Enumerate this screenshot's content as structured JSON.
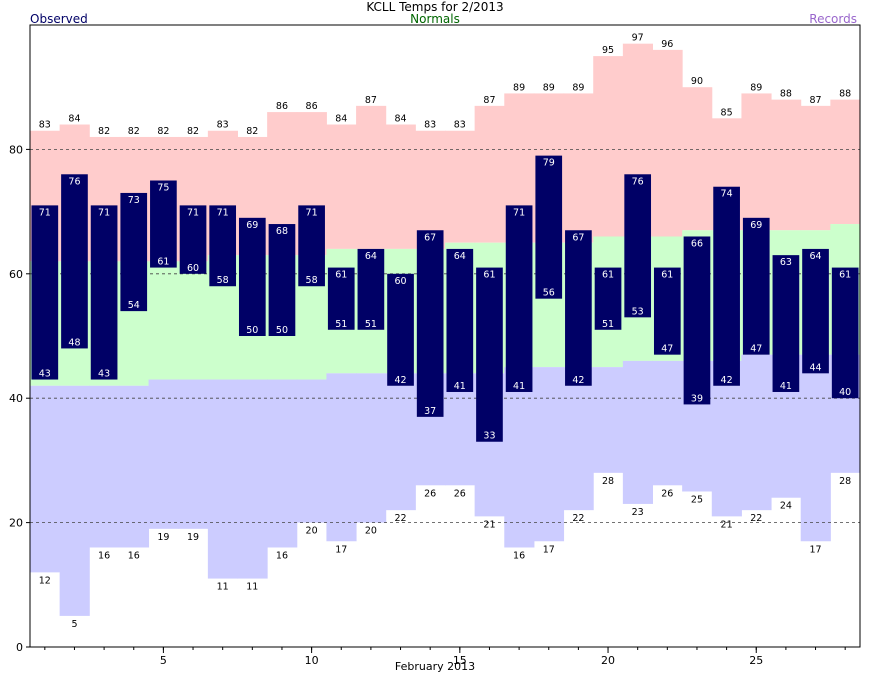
{
  "title": "KCLL Temps for 2/2013",
  "legend": {
    "observed_label": "Observed",
    "normals_label": "Normals",
    "records_label": "Records"
  },
  "colors": {
    "observed_bar": "#000066",
    "normal_band": "#ccffcc",
    "record_high_band": "#ffcccc",
    "record_low_band": "#ccccff",
    "observed_text": "#000066",
    "normals_text": "#006600",
    "records_text": "#9966cc"
  },
  "chart_data": {
    "type": "bar",
    "x_label": "February 2013",
    "x_ticks": [
      5,
      10,
      15,
      20,
      25
    ],
    "y_ticks": [
      0,
      20,
      40,
      60,
      80
    ],
    "ylim": [
      0,
      100
    ],
    "xlim": [
      0.5,
      28.5
    ],
    "grid": "dashed horizontal at 20, 40, 60, 80",
    "days": [
      1,
      2,
      3,
      4,
      5,
      6,
      7,
      8,
      9,
      10,
      11,
      12,
      13,
      14,
      15,
      16,
      17,
      18,
      19,
      20,
      21,
      22,
      23,
      24,
      25,
      26,
      27,
      28
    ],
    "observed_high": [
      71,
      76,
      71,
      73,
      75,
      71,
      71,
      69,
      68,
      71,
      61,
      64,
      60,
      67,
      64,
      61,
      71,
      79,
      67,
      61,
      76,
      61,
      66,
      74,
      69,
      63,
      64,
      61
    ],
    "observed_low": [
      43,
      48,
      43,
      54,
      61,
      60,
      58,
      50,
      50,
      58,
      51,
      51,
      42,
      37,
      41,
      33,
      41,
      56,
      42,
      51,
      53,
      47,
      39,
      42,
      47,
      41,
      44,
      40
    ],
    "normal_high": [
      62,
      62,
      62,
      62,
      62,
      62,
      63,
      63,
      63,
      63,
      64,
      64,
      64,
      64,
      65,
      65,
      65,
      65,
      65,
      66,
      66,
      66,
      67,
      67,
      67,
      67,
      67,
      68
    ],
    "normal_low": [
      42,
      42,
      42,
      42,
      43,
      43,
      43,
      43,
      43,
      43,
      44,
      44,
      44,
      44,
      44,
      44,
      45,
      45,
      45,
      45,
      46,
      46,
      46,
      46,
      47,
      47,
      47,
      47
    ],
    "record_high": [
      83,
      84,
      82,
      82,
      82,
      82,
      83,
      82,
      86,
      86,
      84,
      87,
      84,
      83,
      83,
      87,
      89,
      89,
      89,
      95,
      97,
      96,
      90,
      85,
      89,
      88,
      87,
      88
    ],
    "record_low": [
      12,
      5,
      16,
      16,
      19,
      19,
      11,
      11,
      16,
      20,
      17,
      20,
      22,
      26,
      26,
      21,
      16,
      17,
      22,
      28,
      23,
      26,
      25,
      21,
      22,
      24,
      17,
      28
    ]
  }
}
